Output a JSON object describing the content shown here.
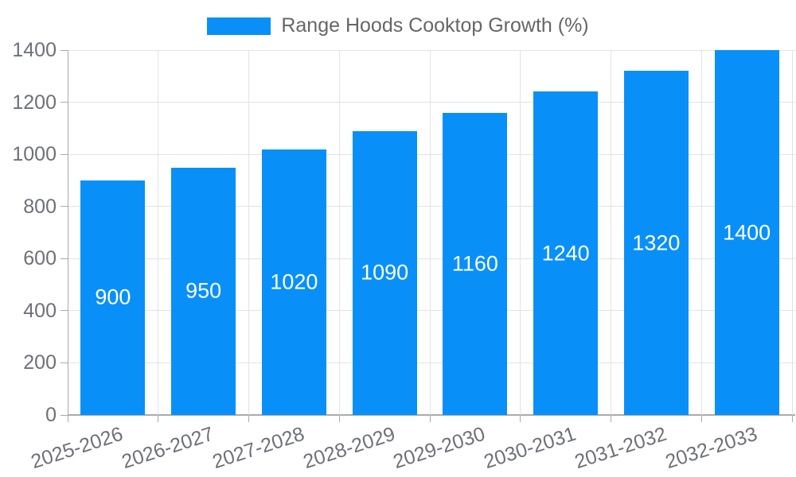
{
  "chart_data": {
    "type": "bar",
    "title": "Range Hoods Cooktop Growth (%)",
    "legend_entries": [
      "Range Hoods Cooktop Growth (%)"
    ],
    "legend_position": "top",
    "categories": [
      "2025-2026",
      "2026-2027",
      "2027-2028",
      "2028-2029",
      "2029-2030",
      "2030-2031",
      "2031-2032",
      "2032-2033"
    ],
    "series": [
      {
        "name": "Range Hoods Cooktop Growth (%)",
        "values": [
          900,
          950,
          1020,
          1090,
          1160,
          1240,
          1320,
          1400
        ]
      }
    ],
    "value_labels": [
      "900",
      "950",
      "1020",
      "1090",
      "1160",
      "1240",
      "1320",
      "1400"
    ],
    "xlabel": "",
    "ylabel": "",
    "ylim": [
      0,
      1400
    ],
    "ytick_step": 200,
    "yticks": [
      0,
      200,
      400,
      600,
      800,
      1000,
      1200,
      1400
    ],
    "grid": true,
    "colors": {
      "bar": "#0990f8",
      "bar_value_label": "#ffffff",
      "axis_tick_label": "#6e7079",
      "legend_label": "#666666",
      "gridline": "#e3e3e3",
      "axis_line": "#aaaaaa"
    }
  }
}
